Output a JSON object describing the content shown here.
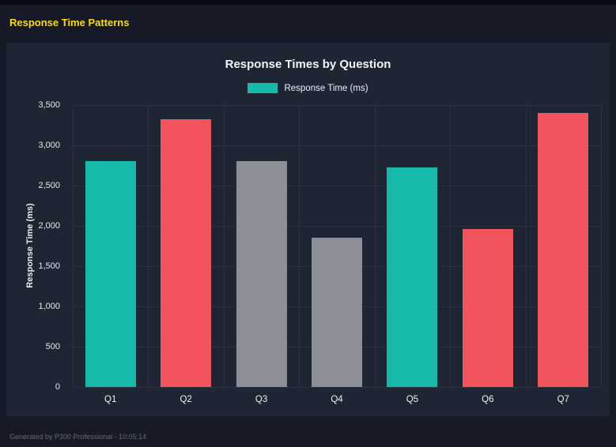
{
  "page": {
    "title": "Response Time Patterns",
    "footer": "Generated by P300 Professional - 10:05:14"
  },
  "chart": {
    "title": "Response Times by Question",
    "legend_label": "Response Time (ms)",
    "legend_color": "#17b9a8"
  },
  "colors": {
    "background": "#161a26",
    "panel": "#1e2533",
    "grid": "#2b3242",
    "accent_yellow": "#ffdc00",
    "teal": "#17b9a8",
    "red": "#f1545c",
    "gray": "#8c8f96"
  },
  "chart_data": {
    "type": "bar",
    "title": "Response Times by Question",
    "categories": [
      "Q1",
      "Q2",
      "Q3",
      "Q4",
      "Q5",
      "Q6",
      "Q7"
    ],
    "values": [
      2800,
      3320,
      2800,
      1850,
      2730,
      1960,
      3400
    ],
    "bar_colors": [
      "#17b9a8",
      "#f1545c",
      "#8c8f96",
      "#8c8f96",
      "#17b9a8",
      "#f1545c",
      "#f1545c"
    ],
    "xlabel": "",
    "ylabel": "Response Time (ms)",
    "ylim": [
      0,
      3500
    ],
    "ytick_step": 500,
    "grid": true,
    "legend": {
      "label": "Response Time (ms)",
      "position": "top"
    }
  }
}
